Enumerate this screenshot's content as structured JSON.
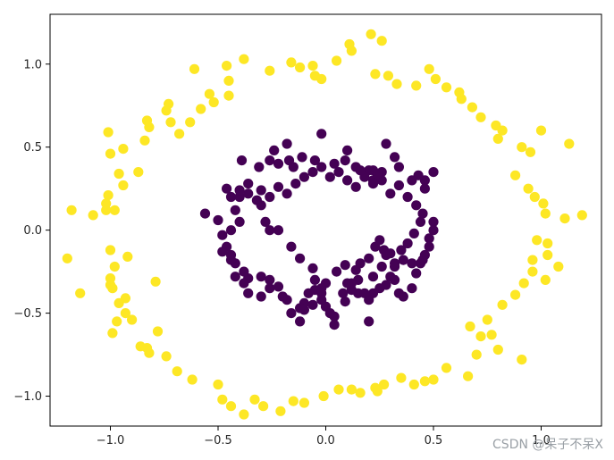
{
  "chart_data": {
    "type": "scatter",
    "title": "",
    "xlabel": "",
    "ylabel": "",
    "xlim": [
      -1.28,
      1.28
    ],
    "ylim": [
      -1.18,
      1.3
    ],
    "x_ticks": [
      -1.0,
      -0.5,
      0.0,
      0.5,
      1.0
    ],
    "x_tick_labels": [
      "−1.0",
      "−0.5",
      "0.0",
      "0.5",
      "1.0"
    ],
    "y_ticks": [
      -1.0,
      -0.5,
      0.0,
      0.5,
      1.0
    ],
    "y_tick_labels": [
      "−1.0",
      "−0.5",
      "0.0",
      "0.5",
      "1.0"
    ],
    "grid": false,
    "legend": "none",
    "colors": {
      "outer": "#fde725",
      "inner": "#440154",
      "axes": "#000000"
    },
    "series": [
      {
        "class": "outer",
        "color": "#fde725",
        "points": [
          [
            -0.61,
            0.97
          ],
          [
            -0.54,
            0.82
          ],
          [
            -0.52,
            0.77
          ],
          [
            -0.46,
            0.99
          ],
          [
            -0.45,
            0.9
          ],
          [
            -0.45,
            0.81
          ],
          [
            -0.38,
            1.03
          ],
          [
            -0.26,
            0.96
          ],
          [
            -0.16,
            1.01
          ],
          [
            -0.12,
            0.98
          ],
          [
            -0.06,
            0.99
          ],
          [
            -0.05,
            0.93
          ],
          [
            -0.02,
            0.91
          ],
          [
            0.05,
            1.02
          ],
          [
            0.11,
            1.12
          ],
          [
            0.12,
            1.08
          ],
          [
            0.21,
            1.18
          ],
          [
            0.26,
            1.14
          ],
          [
            0.23,
            0.94
          ],
          [
            0.29,
            0.93
          ],
          [
            0.33,
            0.88
          ],
          [
            0.42,
            0.87
          ],
          [
            0.48,
            0.97
          ],
          [
            0.51,
            0.91
          ],
          [
            0.56,
            0.86
          ],
          [
            0.62,
            0.83
          ],
          [
            0.63,
            0.79
          ],
          [
            0.68,
            0.74
          ],
          [
            0.72,
            0.68
          ],
          [
            0.79,
            0.63
          ],
          [
            0.82,
            0.6
          ],
          [
            0.8,
            0.55
          ],
          [
            0.91,
            0.5
          ],
          [
            0.95,
            0.47
          ],
          [
            1.0,
            0.6
          ],
          [
            1.13,
            0.52
          ],
          [
            0.88,
            0.33
          ],
          [
            0.94,
            0.25
          ],
          [
            0.97,
            0.2
          ],
          [
            1.01,
            0.16
          ],
          [
            1.02,
            0.1
          ],
          [
            1.11,
            0.07
          ],
          [
            1.19,
            0.09
          ],
          [
            0.98,
            -0.06
          ],
          [
            1.03,
            -0.08
          ],
          [
            1.03,
            -0.15
          ],
          [
            1.08,
            -0.22
          ],
          [
            0.96,
            -0.18
          ],
          [
            0.96,
            -0.25
          ],
          [
            1.02,
            -0.3
          ],
          [
            0.92,
            -0.32
          ],
          [
            0.88,
            -0.39
          ],
          [
            0.82,
            -0.45
          ],
          [
            0.75,
            -0.54
          ],
          [
            0.67,
            -0.58
          ],
          [
            0.72,
            -0.64
          ],
          [
            0.77,
            -0.63
          ],
          [
            0.8,
            -0.72
          ],
          [
            0.91,
            -0.78
          ],
          [
            0.7,
            -0.75
          ],
          [
            0.66,
            -0.88
          ],
          [
            0.56,
            -0.83
          ],
          [
            0.5,
            -0.9
          ],
          [
            0.46,
            -0.91
          ],
          [
            0.41,
            -0.93
          ],
          [
            0.35,
            -0.89
          ],
          [
            0.27,
            -0.93
          ],
          [
            0.23,
            -0.95
          ],
          [
            0.24,
            -0.97
          ],
          [
            0.16,
            -0.98
          ],
          [
            0.12,
            -0.96
          ],
          [
            0.06,
            -0.96
          ],
          [
            -0.01,
            -1.0
          ],
          [
            -0.1,
            -1.04
          ],
          [
            -0.15,
            -1.03
          ],
          [
            -0.21,
            -1.09
          ],
          [
            -0.29,
            -1.06
          ],
          [
            -0.33,
            -1.02
          ],
          [
            -0.38,
            -1.11
          ],
          [
            -0.44,
            -1.06
          ],
          [
            -0.48,
            -1.02
          ],
          [
            -0.5,
            -0.93
          ],
          [
            -0.62,
            -0.9
          ],
          [
            -0.69,
            -0.85
          ],
          [
            -0.74,
            -0.76
          ],
          [
            -0.82,
            -0.74
          ],
          [
            -0.83,
            -0.71
          ],
          [
            -0.86,
            -0.7
          ],
          [
            -0.78,
            -0.61
          ],
          [
            -0.9,
            -0.54
          ],
          [
            -0.93,
            -0.5
          ],
          [
            -0.97,
            -0.55
          ],
          [
            -0.99,
            -0.62
          ],
          [
            -0.96,
            -0.44
          ],
          [
            -0.93,
            -0.41
          ],
          [
            -0.99,
            -0.35
          ],
          [
            -1.0,
            -0.33
          ],
          [
            -1.0,
            -0.29
          ],
          [
            -0.98,
            -0.22
          ],
          [
            -1.14,
            -0.38
          ],
          [
            -1.2,
            -0.17
          ],
          [
            -1.0,
            -0.12
          ],
          [
            -0.92,
            -0.16
          ],
          [
            -0.79,
            -0.31
          ],
          [
            -1.08,
            0.09
          ],
          [
            -1.02,
            0.12
          ],
          [
            -0.98,
            0.12
          ],
          [
            -1.02,
            0.16
          ],
          [
            -1.01,
            0.21
          ],
          [
            -0.94,
            0.27
          ],
          [
            -0.96,
            0.34
          ],
          [
            -1.0,
            0.46
          ],
          [
            -0.94,
            0.49
          ],
          [
            -0.87,
            0.35
          ],
          [
            -1.01,
            0.59
          ],
          [
            -0.82,
            0.62
          ],
          [
            -0.83,
            0.66
          ],
          [
            -0.84,
            0.54
          ],
          [
            -0.74,
            0.72
          ],
          [
            -0.73,
            0.76
          ],
          [
            -0.72,
            0.65
          ],
          [
            -0.63,
            0.65
          ],
          [
            -0.58,
            0.73
          ],
          [
            -0.68,
            0.58
          ],
          [
            -1.18,
            0.12
          ]
        ]
      },
      {
        "class": "inner",
        "color": "#440154",
        "points": [
          [
            -0.31,
            0.38
          ],
          [
            -0.26,
            0.42
          ],
          [
            -0.22,
            0.4
          ],
          [
            -0.17,
            0.42
          ],
          [
            -0.15,
            0.38
          ],
          [
            -0.11,
            0.44
          ],
          [
            -0.05,
            0.42
          ],
          [
            -0.02,
            0.58
          ],
          [
            0.04,
            0.4
          ],
          [
            0.1,
            0.48
          ],
          [
            0.14,
            0.38
          ],
          [
            0.2,
            0.36
          ],
          [
            0.22,
            0.3
          ],
          [
            0.26,
            0.35
          ],
          [
            0.28,
            0.52
          ],
          [
            0.34,
            0.38
          ],
          [
            0.4,
            0.3
          ],
          [
            0.46,
            0.3
          ],
          [
            0.5,
            0.35
          ],
          [
            0.46,
            0.25
          ],
          [
            0.42,
            0.15
          ],
          [
            0.45,
            0.1
          ],
          [
            0.5,
            0.05
          ],
          [
            0.5,
            0.0
          ],
          [
            0.48,
            -0.05
          ],
          [
            0.46,
            -0.15
          ],
          [
            0.44,
            -0.2
          ],
          [
            0.4,
            -0.2
          ],
          [
            0.36,
            -0.18
          ],
          [
            0.32,
            -0.22
          ],
          [
            0.3,
            -0.28
          ],
          [
            0.28,
            -0.33
          ],
          [
            0.25,
            -0.35
          ],
          [
            0.22,
            -0.38
          ],
          [
            0.2,
            -0.42
          ],
          [
            0.2,
            -0.55
          ],
          [
            0.15,
            -0.38
          ],
          [
            0.15,
            -0.3
          ],
          [
            0.12,
            -0.32
          ],
          [
            0.14,
            -0.24
          ],
          [
            0.09,
            -0.21
          ],
          [
            0.05,
            -0.25
          ],
          [
            0.0,
            -0.32
          ],
          [
            -0.02,
            -0.35
          ],
          [
            -0.05,
            -0.36
          ],
          [
            -0.08,
            -0.38
          ],
          [
            -0.1,
            -0.44
          ],
          [
            -0.12,
            -0.47
          ],
          [
            -0.18,
            -0.42
          ],
          [
            -0.22,
            -0.34
          ],
          [
            -0.26,
            -0.3
          ],
          [
            -0.3,
            -0.28
          ],
          [
            -0.36,
            -0.29
          ],
          [
            -0.38,
            -0.25
          ],
          [
            -0.42,
            -0.2
          ],
          [
            -0.44,
            -0.15
          ],
          [
            -0.46,
            -0.1
          ],
          [
            -0.48,
            -0.03
          ],
          [
            -0.44,
            0.0
          ],
          [
            -0.4,
            0.05
          ],
          [
            -0.42,
            0.12
          ],
          [
            -0.44,
            0.2
          ],
          [
            -0.4,
            0.2
          ],
          [
            -0.36,
            0.22
          ],
          [
            -0.32,
            0.18
          ],
          [
            -0.3,
            0.15
          ],
          [
            -0.28,
            0.05
          ],
          [
            -0.26,
            0.0
          ],
          [
            -0.22,
            0.0
          ],
          [
            -0.16,
            -0.1
          ],
          [
            -0.12,
            -0.17
          ],
          [
            -0.06,
            -0.23
          ],
          [
            -0.05,
            -0.3
          ],
          [
            -0.02,
            -0.38
          ],
          [
            0.0,
            -0.46
          ],
          [
            0.04,
            -0.52
          ],
          [
            0.09,
            -0.43
          ],
          [
            0.12,
            -0.36
          ],
          [
            0.18,
            -0.38
          ],
          [
            0.22,
            -0.28
          ],
          [
            0.26,
            -0.22
          ],
          [
            0.28,
            -0.15
          ],
          [
            0.32,
            -0.2
          ],
          [
            0.35,
            -0.12
          ],
          [
            0.38,
            -0.08
          ],
          [
            0.41,
            -0.02
          ],
          [
            0.44,
            0.05
          ],
          [
            0.38,
            0.2
          ],
          [
            0.34,
            0.27
          ],
          [
            0.3,
            0.22
          ],
          [
            0.26,
            0.3
          ],
          [
            0.22,
            0.36
          ],
          [
            0.18,
            0.32
          ],
          [
            0.14,
            0.26
          ],
          [
            0.1,
            0.3
          ],
          [
            0.06,
            0.35
          ],
          [
            0.02,
            0.32
          ],
          [
            -0.02,
            0.38
          ],
          [
            -0.06,
            0.35
          ],
          [
            -0.1,
            0.32
          ],
          [
            -0.14,
            0.28
          ],
          [
            -0.18,
            0.22
          ],
          [
            -0.22,
            0.26
          ],
          [
            -0.26,
            0.2
          ],
          [
            -0.3,
            0.24
          ],
          [
            -0.36,
            0.28
          ],
          [
            -0.4,
            0.24
          ],
          [
            -0.46,
            0.25
          ],
          [
            -0.5,
            0.06
          ],
          [
            -0.56,
            0.1
          ],
          [
            -0.48,
            -0.13
          ],
          [
            -0.44,
            -0.18
          ],
          [
            -0.42,
            -0.28
          ],
          [
            -0.38,
            -0.32
          ],
          [
            -0.36,
            -0.38
          ],
          [
            -0.3,
            -0.4
          ],
          [
            -0.26,
            -0.35
          ],
          [
            -0.2,
            -0.4
          ],
          [
            -0.16,
            -0.5
          ],
          [
            -0.1,
            -0.48
          ],
          [
            -0.06,
            -0.45
          ],
          [
            -0.02,
            -0.42
          ],
          [
            0.02,
            -0.5
          ],
          [
            0.04,
            -0.57
          ],
          [
            -0.12,
            -0.55
          ],
          [
            0.08,
            -0.38
          ],
          [
            0.1,
            -0.32
          ],
          [
            0.16,
            -0.2
          ],
          [
            0.2,
            -0.17
          ],
          [
            0.23,
            -0.1
          ],
          [
            0.25,
            -0.06
          ],
          [
            0.27,
            -0.12
          ],
          [
            0.3,
            -0.14
          ],
          [
            0.32,
            -0.3
          ],
          [
            0.34,
            -0.38
          ],
          [
            0.36,
            -0.4
          ],
          [
            0.4,
            -0.35
          ],
          [
            0.42,
            -0.26
          ],
          [
            0.45,
            -0.18
          ],
          [
            0.48,
            -0.1
          ],
          [
            -0.39,
            0.42
          ],
          [
            -0.24,
            0.48
          ],
          [
            -0.18,
            0.52
          ],
          [
            0.09,
            0.42
          ],
          [
            0.16,
            0.36
          ],
          [
            0.22,
            0.28
          ],
          [
            0.24,
            0.34
          ],
          [
            0.32,
            0.44
          ],
          [
            0.43,
            0.33
          ]
        ]
      }
    ]
  },
  "watermark": "CSDN @呆子不呆X"
}
